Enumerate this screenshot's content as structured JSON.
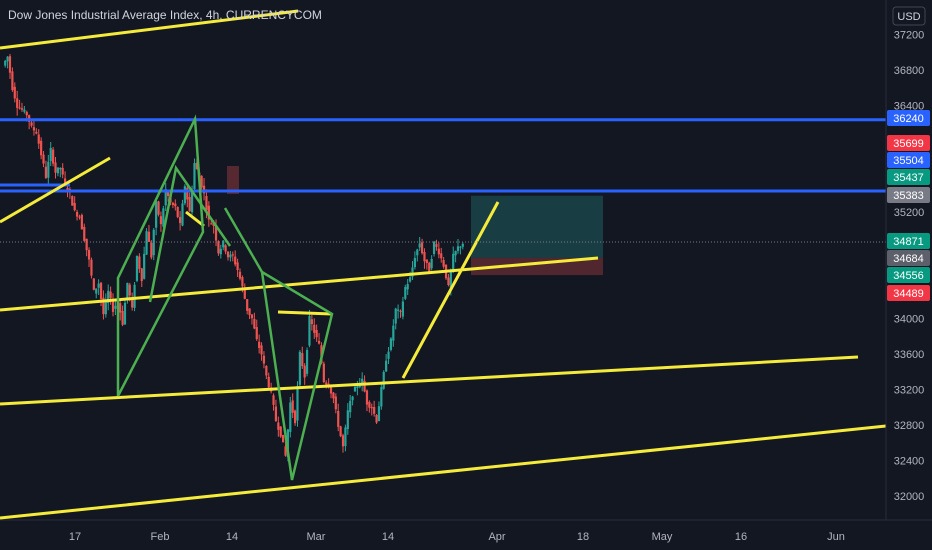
{
  "header": {
    "title": "Dow Jones Industrial Average Index, 4h, CURRENCYCOM"
  },
  "price_axis": {
    "currency": "USD"
  },
  "colors": {
    "background": "#131722",
    "up": "#26a69a",
    "down": "#ef5350",
    "trendline": "#f5eb3b",
    "pattern": "#4caf50",
    "level": "#2962ff",
    "axis_text": "#b2b5be"
  },
  "chart_data": {
    "type": "candlestick",
    "title": "Dow Jones Industrial Average Index, 4h, CURRENCYCOM",
    "timeframe": "4h",
    "y_ticks": [
      32000,
      32400,
      32800,
      33200,
      33600,
      34000,
      35200,
      36400,
      36800,
      37200
    ],
    "x_ticks": [
      "17",
      "Feb",
      "14",
      "Mar",
      "14",
      "Apr",
      "18",
      "May",
      "16",
      "Jun"
    ],
    "ylim": [
      31800,
      37400
    ],
    "grid": false,
    "horizontal_levels": [
      36240,
      35437
    ],
    "price_labels": [
      {
        "value": 36240,
        "label": "36240",
        "color": "#2962ff"
      },
      {
        "value": 35699,
        "label": "35699",
        "color": "#f23645"
      },
      {
        "value": 35504,
        "label": "35504",
        "color": "#2962ff"
      },
      {
        "value": 35437,
        "label": "35437",
        "color": "#089981"
      },
      {
        "value": 35383,
        "label": "35383",
        "color": "#787b86"
      },
      {
        "value": 34871,
        "label": "34871",
        "color": "#089981"
      },
      {
        "value": 34684,
        "label": "34684",
        "color": "#5d606b"
      },
      {
        "value": 34556,
        "label": "34556",
        "color": "#089981"
      },
      {
        "value": 34489,
        "label": "34489",
        "color": "#f23645"
      }
    ],
    "position_box": {
      "entry": 34684,
      "target": 35383,
      "stop": 34489
    },
    "price_path": [
      [
        36850,
        36950
      ],
      [
        36600,
        36400
      ],
      [
        36350,
        36300
      ],
      [
        36150,
        36100
      ],
      [
        35850,
        35600
      ],
      [
        35900,
        35650
      ],
      [
        35700,
        35500
      ],
      [
        35400,
        35200
      ],
      [
        35150,
        34900
      ],
      [
        34650,
        34300
      ],
      [
        34400,
        34050
      ],
      [
        34300,
        34100
      ],
      [
        34200,
        33950
      ],
      [
        34400,
        34100
      ],
      [
        34700,
        34450
      ],
      [
        35000,
        34700
      ],
      [
        35300,
        35050
      ],
      [
        35450,
        35300
      ],
      [
        35250,
        35050
      ],
      [
        35500,
        35200
      ],
      [
        35750,
        35600
      ],
      [
        35400,
        35100
      ],
      [
        35050,
        34750
      ],
      [
        34850,
        34700
      ],
      [
        34700,
        34550
      ],
      [
        34350,
        34100
      ],
      [
        34000,
        33750
      ],
      [
        33600,
        33350
      ],
      [
        33150,
        32850
      ],
      [
        32700,
        32450
      ],
      [
        33050,
        32850
      ],
      [
        33600,
        33350
      ],
      [
        34000,
        33850
      ],
      [
        33700,
        33300
      ],
      [
        33250,
        33100
      ],
      [
        32800,
        32550
      ],
      [
        32950,
        33150
      ],
      [
        33250,
        33300
      ],
      [
        33050,
        33000
      ],
      [
        32850,
        33200
      ],
      [
        33550,
        33750
      ],
      [
        34100,
        34050
      ],
      [
        34350,
        34450
      ],
      [
        34700,
        34850
      ],
      [
        34650,
        34550
      ],
      [
        34850,
        34750
      ],
      [
        34600,
        34350
      ],
      [
        34700,
        34800
      ],
      [
        34850,
        34900
      ]
    ]
  }
}
